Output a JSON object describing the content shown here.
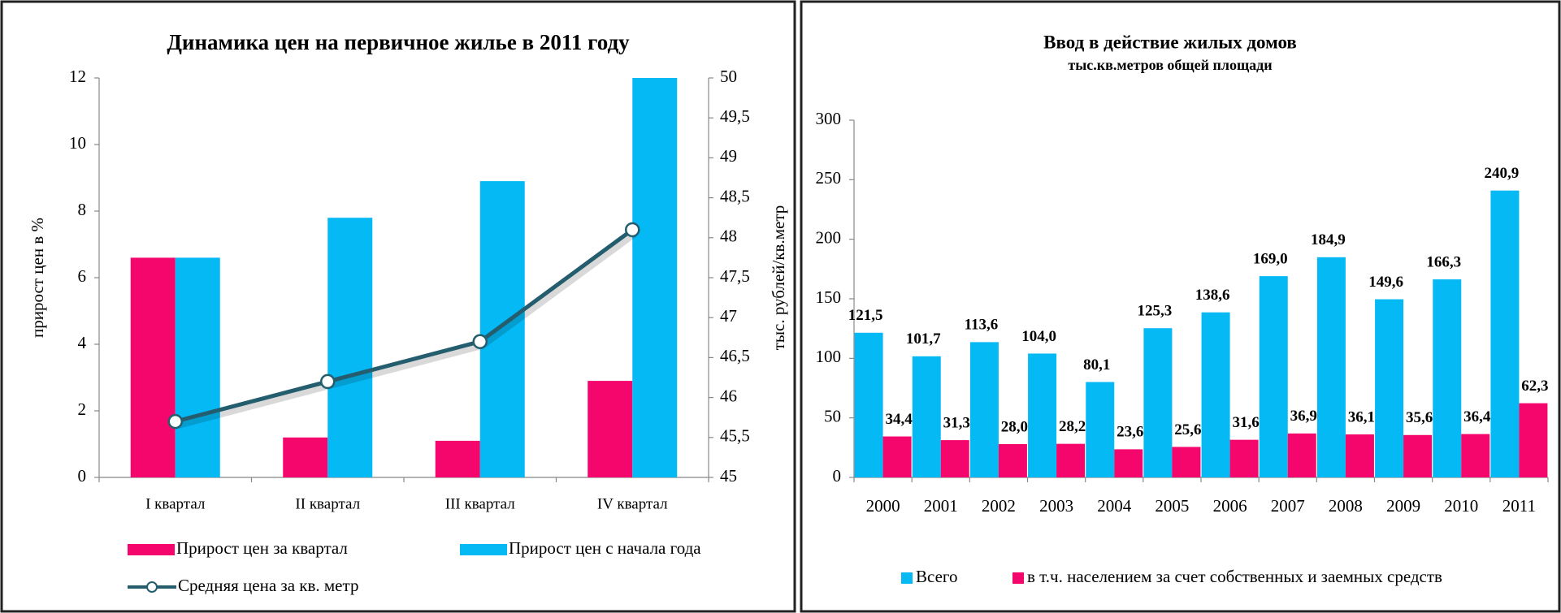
{
  "chart_data": [
    {
      "type": "combo",
      "title": "Динамика цен на первичное жилье в 2011 году",
      "y_label": "прирост цен в %",
      "y2_label": "тыс. рублей/кв.метр",
      "categories": [
        "I квартал",
        "II квартал",
        "III квартал",
        "IV квартал"
      ],
      "series": [
        {
          "name": "Прирост цен за квартал",
          "type": "bar",
          "color": "#f5066c",
          "values": [
            6.6,
            1.2,
            1.1,
            2.9
          ]
        },
        {
          "name": "Прирост цен с начала года",
          "type": "bar",
          "color": "#05b9f5",
          "values": [
            6.6,
            7.8,
            8.9,
            12
          ]
        },
        {
          "name": "Средняя цена за кв. метр",
          "type": "line",
          "axis": "y2",
          "color": "#245e6e",
          "values": [
            45.7,
            46.2,
            46.7,
            48.1
          ]
        }
      ],
      "ylim": [
        0,
        12
      ],
      "yticks": [
        0,
        2,
        4,
        6,
        8,
        10,
        12
      ],
      "y2lim": [
        45,
        50
      ],
      "y2ticks": [
        45,
        {
          "value": 45.5,
          "label": "45,5"
        },
        46,
        {
          "value": 46.5,
          "label": "46,5"
        },
        47,
        {
          "value": 47.5,
          "label": "47,5"
        },
        48,
        {
          "value": 48.5,
          "label": "48,5"
        },
        49,
        {
          "value": 49.5,
          "label": "49,5"
        },
        50
      ],
      "grid": false,
      "legend": "bottom"
    },
    {
      "type": "bar",
      "title": "Ввод в действие жилых домов",
      "subtitle": "тыс.кв.метров общей площади",
      "categories": [
        "2000",
        "2001",
        "2002",
        "2003",
        "2004",
        "2005",
        "2006",
        "2007",
        "2008",
        "2009",
        "2010",
        "2011"
      ],
      "series": [
        {
          "name": "Всего",
          "color": "#05b9f5",
          "values": [
            121.5,
            101.7,
            113.6,
            104.0,
            80.1,
            125.3,
            138.6,
            169.0,
            184.9,
            149.6,
            166.3,
            240.9
          ],
          "value_labels": [
            "121,5",
            "101,7",
            "113,6",
            "104,0",
            "80,1",
            "125,3",
            "138,6",
            "169,0",
            "184,9",
            "149,6",
            "166,3",
            "240,9"
          ]
        },
        {
          "name": "в т.ч. населением за счет собственных и заемных средств",
          "color": "#f5066c",
          "values": [
            34.4,
            31.3,
            28.0,
            28.2,
            23.6,
            25.6,
            31.6,
            36.9,
            36.1,
            35.6,
            36.4,
            62.3
          ],
          "value_labels": [
            "34,4",
            "31,3",
            "28,0",
            "28,2",
            "23,6",
            "25,6",
            "31,6",
            "36,9",
            "36,1",
            "35,6",
            "36,4",
            "62,3"
          ]
        }
      ],
      "ylim": [
        0,
        300
      ],
      "yticks": [
        0,
        50,
        100,
        150,
        200,
        250,
        300
      ],
      "grid": false,
      "legend": "bottom"
    }
  ]
}
